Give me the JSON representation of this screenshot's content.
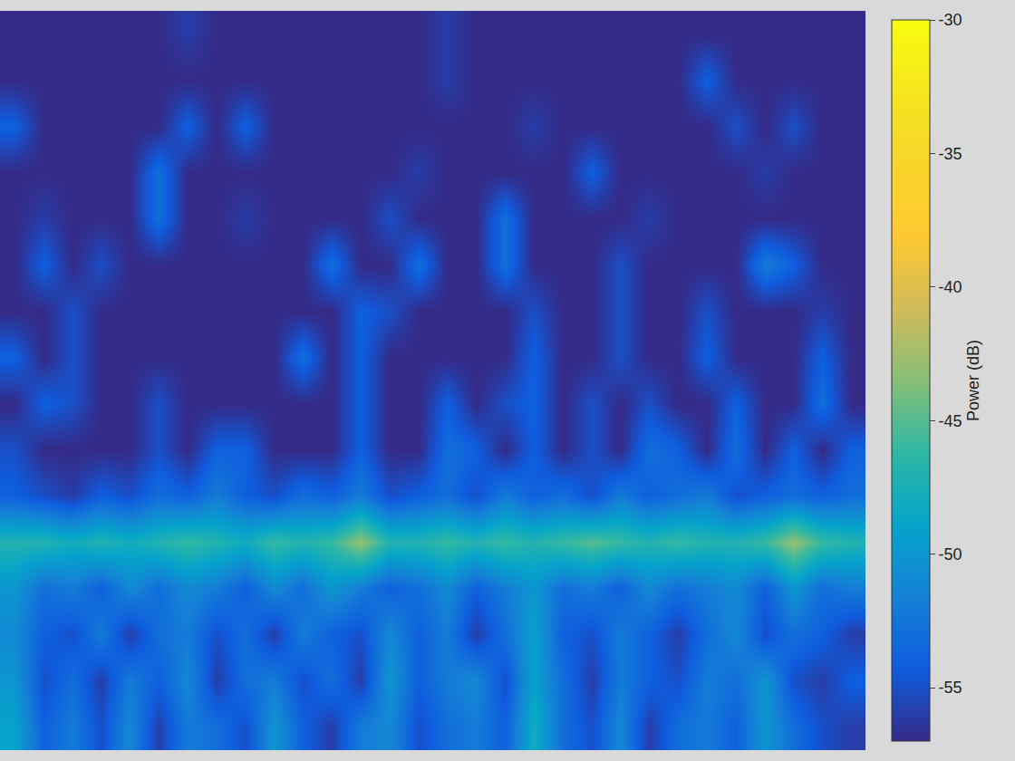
{
  "chart_data": {
    "type": "heatmap",
    "tick_labels": false,
    "z": [
      [
        -57,
        -57,
        -57,
        -57,
        -57,
        -57,
        -56,
        -57,
        -57,
        -57,
        -57,
        -57,
        -57,
        -57,
        -57,
        -56,
        -57,
        -57,
        -57,
        -57,
        -57,
        -57,
        -57,
        -57,
        -57,
        -57,
        -57,
        -57,
        -57,
        -57
      ],
      [
        -57,
        -57,
        -57,
        -57,
        -57,
        -57,
        -57,
        -57,
        -57,
        -57,
        -57,
        -57,
        -57,
        -57,
        -57,
        -56,
        -57,
        -57,
        -57,
        -57,
        -57,
        -57,
        -57,
        -57,
        -54,
        -57,
        -57,
        -57,
        -57,
        -57
      ],
      [
        -54,
        -57,
        -57,
        -57,
        -57,
        -57,
        -54,
        -57,
        -54,
        -57,
        -57,
        -57,
        -57,
        -57,
        -57,
        -57,
        -57,
        -57,
        -56,
        -57,
        -57,
        -57,
        -57,
        -57,
        -57,
        -55,
        -57,
        -55,
        -57,
        -57
      ],
      [
        -57,
        -57,
        -57,
        -57,
        -57,
        -53,
        -57,
        -57,
        -57,
        -57,
        -57,
        -57,
        -57,
        -57,
        -56,
        -57,
        -57,
        -57,
        -57,
        -57,
        -54,
        -57,
        -57,
        -57,
        -57,
        -57,
        -56,
        -57,
        -57,
        -57
      ],
      [
        -57,
        -56,
        -57,
        -57,
        -57,
        -53,
        -57,
        -57,
        -56,
        -57,
        -57,
        -57,
        -57,
        -55,
        -57,
        -57,
        -57,
        -53,
        -57,
        -57,
        -57,
        -57,
        -56,
        -57,
        -57,
        -57,
        -57,
        -57,
        -57,
        -57
      ],
      [
        -57,
        -54,
        -57,
        -55,
        -57,
        -57,
        -57,
        -57,
        -57,
        -57,
        -57,
        -53,
        -57,
        -57,
        -53,
        -57,
        -57,
        -53,
        -57,
        -57,
        -57,
        -55,
        -57,
        -57,
        -57,
        -57,
        -52,
        -54,
        -57,
        -57
      ],
      [
        -57,
        -57,
        -55,
        -57,
        -57,
        -57,
        -57,
        -57,
        -57,
        -57,
        -57,
        -57,
        -54,
        -55,
        -57,
        -57,
        -57,
        -57,
        -55,
        -57,
        -57,
        -55,
        -57,
        -57,
        -55,
        -57,
        -57,
        -57,
        -56,
        -57
      ],
      [
        -54,
        -57,
        -55,
        -57,
        -57,
        -57,
        -57,
        -57,
        -57,
        -57,
        -53,
        -57,
        -54,
        -57,
        -57,
        -57,
        -57,
        -57,
        -54,
        -57,
        -57,
        -55,
        -57,
        -57,
        -54,
        -57,
        -57,
        -57,
        -54,
        -57
      ],
      [
        -57,
        -54,
        -55,
        -57,
        -57,
        -55,
        -57,
        -57,
        -57,
        -57,
        -57,
        -57,
        -54,
        -57,
        -57,
        -54,
        -57,
        -55,
        -54,
        -57,
        -55,
        -57,
        -55,
        -57,
        -57,
        -54,
        -57,
        -57,
        -53,
        -57
      ],
      [
        -55,
        -57,
        -57,
        -57,
        -57,
        -55,
        -57,
        -54,
        -54,
        -57,
        -57,
        -57,
        -54,
        -57,
        -57,
        -53,
        -54,
        -57,
        -54,
        -57,
        -55,
        -57,
        -53,
        -54,
        -57,
        -53,
        -57,
        -54,
        -57,
        -54
      ],
      [
        -54,
        -55,
        -56,
        -54,
        -55,
        -53,
        -54,
        -52,
        -54,
        -55,
        -53,
        -54,
        -52,
        -55,
        -54,
        -53,
        -55,
        -52,
        -54,
        -53,
        -55,
        -52,
        -54,
        -53,
        -52,
        -55,
        -54,
        -53,
        -54,
        -53
      ],
      [
        -47,
        -47,
        -48,
        -47,
        -48,
        -47,
        -46,
        -47,
        -48,
        -46,
        -47,
        -46,
        -43,
        -47,
        -47,
        -46,
        -47,
        -46,
        -47,
        -46,
        -45,
        -46,
        -47,
        -46,
        -47,
        -47,
        -46,
        -43,
        -46,
        -47
      ],
      [
        -50,
        -53,
        -52,
        -54,
        -51,
        -53,
        -51,
        -52,
        -54,
        -51,
        -53,
        -50,
        -52,
        -54,
        -53,
        -51,
        -54,
        -52,
        -50,
        -53,
        -52,
        -54,
        -51,
        -53,
        -52,
        -51,
        -54,
        -50,
        -53,
        -52
      ],
      [
        -51,
        -54,
        -55,
        -52,
        -56,
        -53,
        -52,
        -55,
        -53,
        -56,
        -52,
        -54,
        -55,
        -51,
        -54,
        -52,
        -56,
        -53,
        -49,
        -54,
        -55,
        -52,
        -54,
        -56,
        -53,
        -51,
        -55,
        -53,
        -54,
        -56
      ],
      [
        -50,
        -55,
        -53,
        -56,
        -52,
        -54,
        -51,
        -56,
        -53,
        -52,
        -55,
        -53,
        -56,
        -50,
        -54,
        -52,
        -51,
        -55,
        -49,
        -53,
        -56,
        -52,
        -54,
        -55,
        -52,
        -53,
        -50,
        -55,
        -56,
        -54
      ],
      [
        -49,
        -54,
        -52,
        -55,
        -51,
        -56,
        -52,
        -53,
        -55,
        -50,
        -54,
        -56,
        -52,
        -51,
        -55,
        -53,
        -52,
        -54,
        -48,
        -53,
        -55,
        -51,
        -56,
        -53,
        -52,
        -54,
        -50,
        -53,
        -55,
        -56
      ]
    ],
    "colorbar": {
      "title": "Power (dB)",
      "zlim": [
        -57,
        -30
      ],
      "ticks": [
        -55,
        -50,
        -45,
        -40,
        -35,
        -30
      ]
    }
  }
}
